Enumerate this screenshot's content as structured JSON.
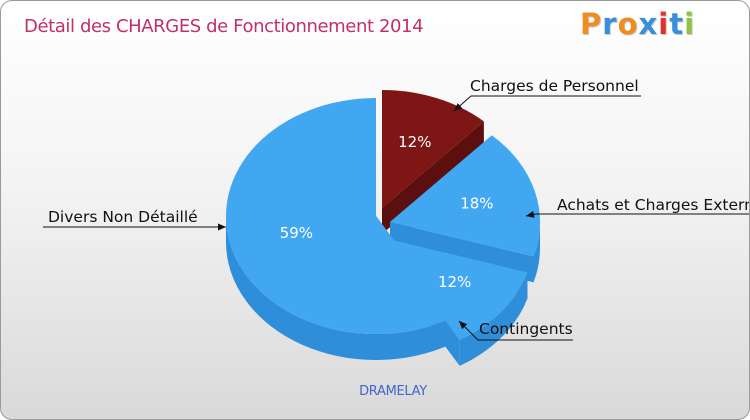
{
  "logo": {
    "text": "Proxiti",
    "colors": [
      "#f08c22",
      "#3a8fd9",
      "#f08c22",
      "#3a8fd9",
      "#e0332a",
      "#3a8fd9",
      "#8cc63f"
    ]
  },
  "colors": {
    "title": "#c0306a",
    "commune": "#4466cc",
    "blue_top": "#42a7f1",
    "blue_side": "#2f8ed9",
    "red_top": "#7e1616",
    "red_side": "#5c0f0f"
  },
  "chart_data": {
    "type": "pie",
    "title": "Détail des CHARGES de Fonctionnement 2014",
    "footer": "DRAMELAY",
    "slices": [
      {
        "label": "Charges de Personnel",
        "value": 12,
        "percent_label": "12%",
        "color": "#7e1616"
      },
      {
        "label": "Achats et Charges Externes",
        "value": 18,
        "percent_label": "18%",
        "color": "#42a7f1"
      },
      {
        "label": "Contingents",
        "value": 12,
        "percent_label": "12%",
        "color": "#42a7f1"
      },
      {
        "label": "Divers Non Détaillé",
        "value": 59,
        "percent_label": "59%",
        "color": "#42a7f1"
      }
    ]
  }
}
